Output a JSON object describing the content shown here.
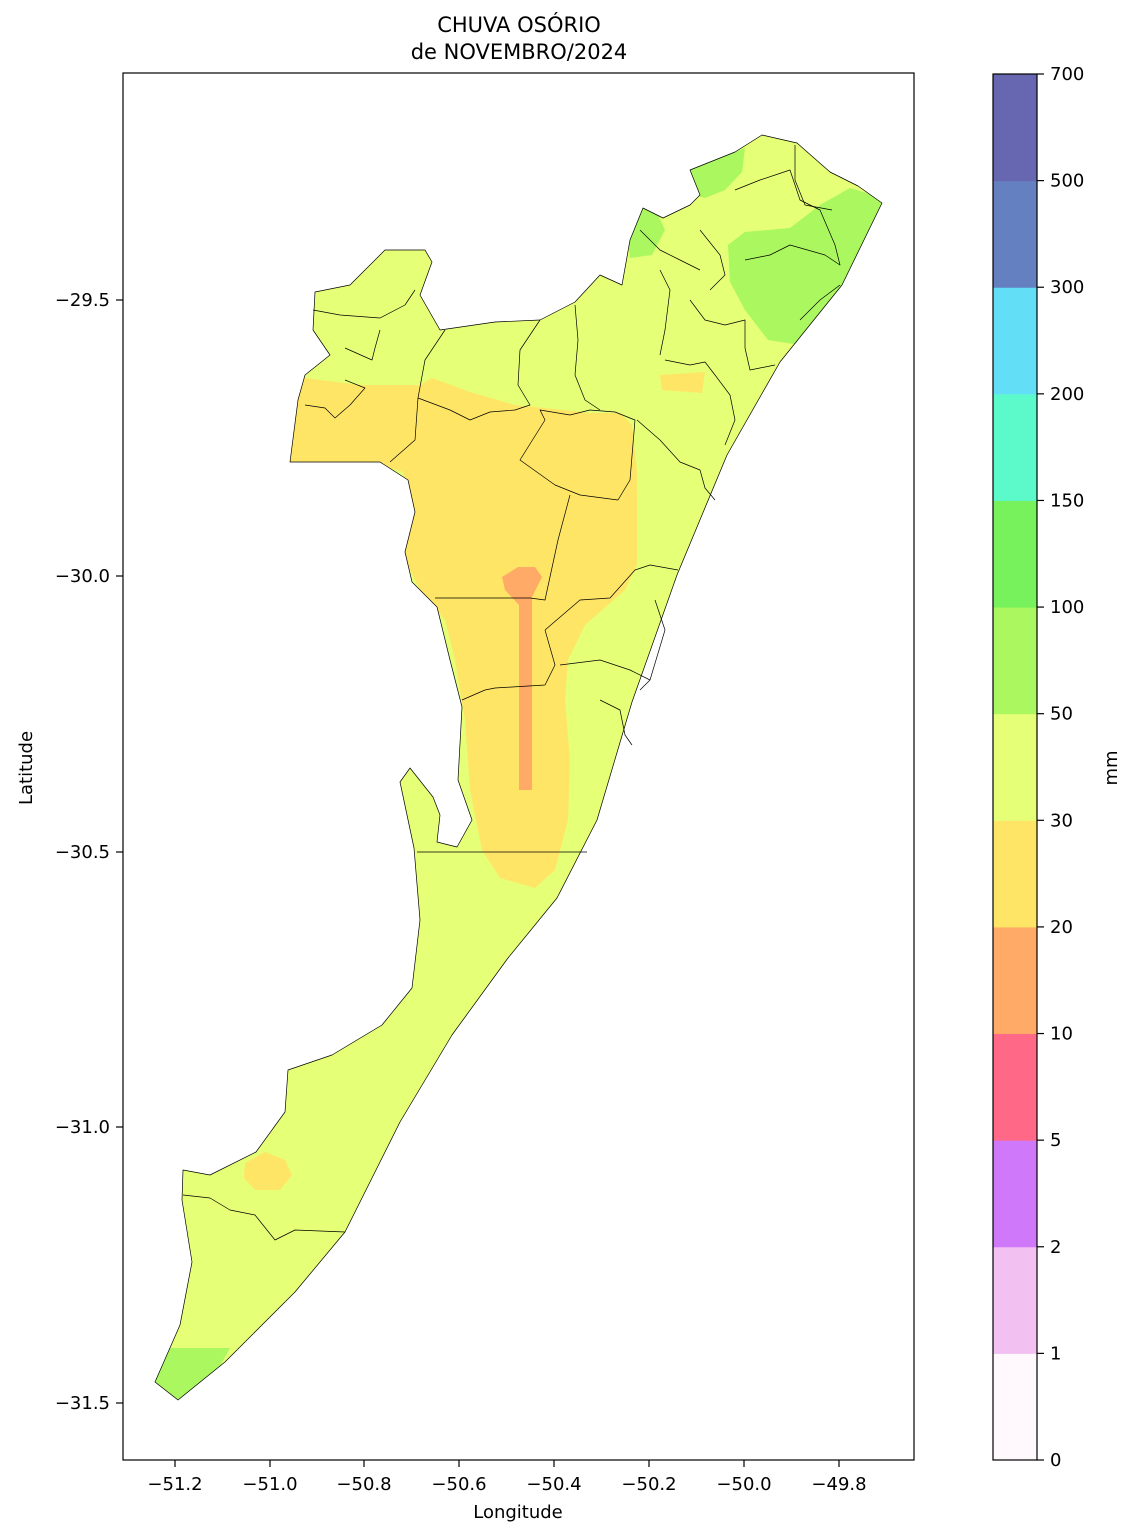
{
  "title": {
    "line1": "CHUVA OSÓRIO",
    "line2": "de NOVEMBRO/2024"
  },
  "axes": {
    "xlabel": "Longitude",
    "ylabel": "Latitude",
    "x_ticks": [
      "−51.2",
      "−51.0",
      "−50.8",
      "−50.6",
      "−50.4",
      "−50.2",
      "−50.0",
      "−49.8"
    ],
    "y_ticks": [
      "−29.5",
      "−30.0",
      "−30.5",
      "−31.0",
      "−31.5"
    ],
    "xlim": [
      -51.31,
      -49.64
    ],
    "ylim": [
      -31.6,
      -28.95
    ]
  },
  "colorbar": {
    "unit": "mm",
    "levels": [
      "0",
      "1",
      "2",
      "5",
      "10",
      "20",
      "30",
      "50",
      "100",
      "150",
      "200",
      "300",
      "500",
      "700"
    ],
    "colors": [
      "#fff8fc",
      "#f3c0f2",
      "#cf79fa",
      "#ff6887",
      "#ffaa66",
      "#ffe566",
      "#e5ff77",
      "#abf75f",
      "#77f25c",
      "#5cf9cb",
      "#63def7",
      "#6480c0",
      "#6766b1"
    ]
  },
  "map_colors": {
    "band_30_50": "#e5ff77",
    "band_20_30": "#ffe566",
    "band_10_20": "#ffaa66",
    "band_50_100": "#abf75f",
    "boundary": "#000000"
  }
}
